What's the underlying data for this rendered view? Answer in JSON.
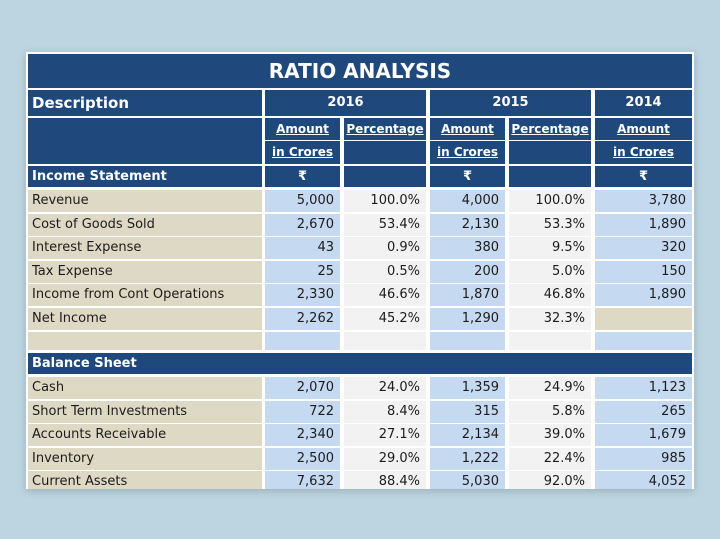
{
  "title": "RATIO ANALYSIS",
  "header": {
    "description": "Description",
    "years": [
      "2016",
      "2015",
      "2014"
    ],
    "amount_line1": "Amount",
    "amount_line2": "in Crores",
    "percentage": "Percentage",
    "currency": "₹"
  },
  "income_statement": {
    "title": "Income Statement",
    "rows": [
      {
        "label": "Revenue",
        "a2016": "5,000",
        "p2016": "100.0%",
        "a2015": "4,000",
        "p2015": "100.0%",
        "a2014": "3,780"
      },
      {
        "label": "Cost of Goods Sold",
        "a2016": "2,670",
        "p2016": "53.4%",
        "a2015": "2,130",
        "p2015": "53.3%",
        "a2014": "1,890"
      },
      {
        "label": "Interest Expense",
        "a2016": "43",
        "p2016": "0.9%",
        "a2015": "380",
        "p2015": "9.5%",
        "a2014": "320"
      },
      {
        "label": "Tax Expense",
        "a2016": "25",
        "p2016": "0.5%",
        "a2015": "200",
        "p2015": "5.0%",
        "a2014": "150"
      },
      {
        "label": "Income from Cont Operations",
        "a2016": "2,330",
        "p2016": "46.6%",
        "a2015": "1,870",
        "p2015": "46.8%",
        "a2014": "1,890"
      },
      {
        "label": "Net Income",
        "a2016": "2,262",
        "p2016": "45.2%",
        "a2015": "1,290",
        "p2015": "32.3%",
        "a2014": ""
      }
    ]
  },
  "balance_sheet": {
    "title": "Balance Sheet",
    "rows": [
      {
        "label": "Cash",
        "a2016": "2,070",
        "p2016": "24.0%",
        "a2015": "1,359",
        "p2015": "24.9%",
        "a2014": "1,123"
      },
      {
        "label": "Short Term Investments",
        "a2016": "722",
        "p2016": "8.4%",
        "a2015": "315",
        "p2015": "5.8%",
        "a2014": "265"
      },
      {
        "label": "Accounts Receivable",
        "a2016": "2,340",
        "p2016": "27.1%",
        "a2015": "2,134",
        "p2015": "39.0%",
        "a2014": "1,679"
      },
      {
        "label": "Inventory",
        "a2016": "2,500",
        "p2016": "29.0%",
        "a2015": "1,222",
        "p2015": "22.4%",
        "a2014": "985"
      },
      {
        "label": "Current Assets",
        "a2016": "7,632",
        "p2016": "88.4%",
        "a2015": "5,030",
        "p2015": "92.0%",
        "a2014": "4,052"
      }
    ]
  },
  "colors": {
    "header_navy": "#1f497d",
    "label_tan": "#ddd9c4",
    "amount_blue": "#c5d9f1",
    "percent_gray": "#f2f2f2",
    "background": "#bcd5e0"
  }
}
